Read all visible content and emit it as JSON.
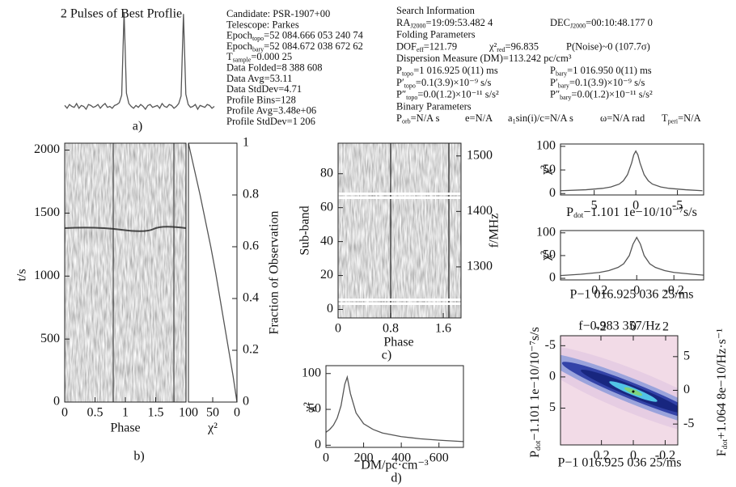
{
  "chart_data": [
    {
      "type": "line",
      "title": "2 Pulses of Best Proflie",
      "label": "a)",
      "color": "#555555",
      "values": [
        1,
        -2,
        2,
        0,
        -1,
        3,
        -2,
        1,
        0,
        -3,
        2,
        1,
        -1,
        0,
        2,
        -2,
        1,
        3,
        -1,
        0,
        -2,
        1,
        2,
        4,
        12,
        100,
        14,
        3,
        0,
        -2,
        1,
        -1,
        2,
        0,
        -3,
        1,
        2,
        -1,
        0,
        1,
        -2,
        3,
        0,
        -1,
        2,
        1,
        -2,
        0,
        3,
        11,
        98,
        13,
        2,
        -1,
        0,
        2,
        -3,
        1,
        0,
        -1,
        2,
        1,
        -2,
        0
      ]
    },
    {
      "type": "image",
      "label": "b)",
      "xlabel": "Phase",
      "ylabel": "t/s",
      "xlim": [
        0,
        2
      ],
      "xticks": [
        0,
        0.5,
        1,
        1.5
      ],
      "ylim": [
        0,
        2055
      ],
      "yticks": [
        0,
        500,
        1000,
        1500,
        2000
      ]
    },
    {
      "type": "line",
      "xlabel": "χ²",
      "y2label": "Fraction of Observation",
      "x": [
        0,
        8,
        17,
        26,
        35,
        44,
        54,
        65,
        76,
        88,
        100
      ],
      "series": [
        {
          "values": [
            0,
            0.1,
            0.2,
            0.3,
            0.4,
            0.5,
            0.6,
            0.7,
            0.8,
            0.9,
            1
          ],
          "axis": "y2",
          "color": "#555555"
        }
      ],
      "xlim": [
        100,
        0
      ],
      "xticks": [
        100,
        50,
        0
      ],
      "y2lim": [
        0,
        1
      ],
      "y2ticks": [
        0,
        0.2,
        0.4,
        0.6,
        0.8,
        1
      ]
    },
    {
      "type": "image",
      "label": "c)",
      "xlabel": "Phase",
      "ylabel": "Sub-band",
      "y2label": "f/MHz",
      "xlim": [
        0,
        1.87
      ],
      "xticks": [
        0,
        0.8,
        1.6
      ],
      "ylim": [
        -5,
        98
      ],
      "yticks": [
        0,
        20,
        40,
        60,
        80
      ],
      "y2lim": [
        1208,
        1523
      ],
      "y2ticks": [
        1300,
        1400,
        1500
      ]
    },
    {
      "type": "line",
      "label": "d)",
      "xlabel": "DM/pc·cm⁻³",
      "ylabel": "χ²",
      "color": "#555555",
      "x": [
        0,
        20,
        40,
        60,
        80,
        100,
        113,
        130,
        160,
        200,
        250,
        300,
        400,
        500,
        600,
        730
      ],
      "values": [
        18,
        22,
        28,
        38,
        55,
        85,
        95,
        72,
        45,
        30,
        22,
        17,
        12,
        9,
        7,
        5
      ],
      "xlim": [
        0,
        730
      ],
      "xticks": [
        0,
        200,
        400,
        600
      ],
      "ylim": [
        -3,
        111
      ],
      "yticks": [
        0,
        50,
        100
      ]
    },
    {
      "type": "line",
      "xlabel": [
        "P",
        "dot",
        "−1.101 1e−10/10⁻⁷s/s"
      ],
      "ylabel": "χ²",
      "color": "#555555",
      "x": [
        9,
        6,
        4,
        3,
        2,
        1.5,
        1,
        0.5,
        0.25,
        0,
        -0.25,
        -0.5,
        -1,
        -1.5,
        -2,
        -3,
        -4,
        -6,
        -8
      ],
      "values": [
        6,
        8,
        11,
        14,
        20,
        27,
        40,
        65,
        82,
        90,
        82,
        65,
        40,
        27,
        20,
        14,
        11,
        8,
        6
      ],
      "xlim": [
        9.05,
        -8.15
      ],
      "xticks": [
        5,
        0,
        -5
      ],
      "ylim": [
        -3,
        105
      ],
      "yticks": [
        0,
        50,
        100
      ]
    },
    {
      "type": "line",
      "xlabel": "P−1 016.925 036 25/ms",
      "ylabel": "χ²",
      "color": "#555555",
      "x": [
        0.41,
        0.3,
        0.2,
        0.15,
        0.1,
        0.07,
        0.04,
        0.02,
        0,
        -0.02,
        -0.04,
        -0.07,
        -0.1,
        -0.15,
        -0.2,
        -0.3,
        -0.36
      ],
      "values": [
        6,
        9,
        13,
        17,
        24,
        32,
        50,
        75,
        90,
        75,
        50,
        32,
        24,
        17,
        13,
        9,
        7
      ],
      "xlim": [
        0.41,
        -0.36
      ],
      "xticks": [
        0.2,
        0,
        -0.2
      ],
      "ylim": [
        -3.5,
        105
      ],
      "yticks": [
        0,
        50,
        100
      ]
    },
    {
      "type": "image",
      "xlabel": "P−1 016.925 036 25/ms",
      "x2label": "f−0.983 357/Hz",
      "ylabel": [
        "P",
        "dot",
        "−1.101 1e−10/10⁻⁷s/s"
      ],
      "y2label": [
        "F",
        "dot",
        "+1.064 8e−10/Hz·s⁻¹"
      ],
      "xlim": [
        0.457,
        -0.279
      ],
      "xticks": [
        0.2,
        0,
        -0.2
      ],
      "x2lim": [
        -4.5,
        2.75
      ],
      "x2ticks": [
        -2,
        0,
        2
      ],
      "ylim": [
        10.9,
        -6.6
      ],
      "yticks": [
        -5,
        0,
        5
      ],
      "y2lim": [
        -8.1,
        8.1
      ],
      "y2ticks": [
        -5,
        0,
        5
      ]
    }
  ],
  "info": {
    "left": [
      [
        [
          "Candidate: PSR-1907+00"
        ]
      ],
      [
        [
          "Telescope: Parkes"
        ]
      ],
      [
        [
          "Epoch",
          "topo",
          "=52 084.666 053 240 74"
        ]
      ],
      [
        [
          "Epoch",
          "bary",
          "=52 084.672 038 672 62"
        ]
      ],
      [
        [
          "T",
          "sample",
          "=0.000 25"
        ]
      ],
      [
        [
          "Data Folded=8 388 608"
        ]
      ],
      [
        [
          "Data Avg=53.11"
        ]
      ],
      [
        [
          "Data StdDev=4.71"
        ]
      ],
      [
        [
          "Profile Bins=128"
        ]
      ],
      [
        [
          "Profile Avg=3.48e+06"
        ]
      ],
      [
        [
          "Profile  StdDev=1 206"
        ]
      ]
    ],
    "right": [
      [
        [
          "Search Information"
        ]
      ],
      [
        [
          "RA",
          "J2000",
          "=19:09:53.482 4"
        ],
        [
          "DEC",
          "J2000",
          "=00:10:48.177 0"
        ]
      ],
      [
        [
          "Folding Parameters"
        ]
      ],
      [
        [
          "DOF",
          "eff",
          "=121.79"
        ],
        [
          "χ²",
          "red",
          "=96.835"
        ],
        [
          "P(Noise)~0 (107.7σ)"
        ]
      ],
      [
        [
          "Dispersion Measure (DM)=113.242 pc/cm³"
        ]
      ],
      [
        [
          "P",
          "topo",
          "=1 016.925 0(11) ms"
        ],
        [
          "P",
          "bary",
          "=1 016.950 0(11) ms"
        ]
      ],
      [
        [
          "P′",
          "topo",
          "=0.1(3.9)×10⁻⁹ s/s"
        ],
        [
          "P′",
          "bary",
          "=0.1(3.9)×10⁻⁹ s/s"
        ]
      ],
      [
        [
          "P″",
          "topo",
          "=0.0(1.2)×10⁻¹¹ s/s²"
        ],
        [
          "P″",
          "bary",
          "=0.0(1.2)×10⁻¹¹ s/s²"
        ]
      ],
      [
        [
          "Binary Parameters"
        ]
      ],
      [
        [
          "P",
          "orb",
          "=N/A s"
        ],
        [
          "e=N/A"
        ],
        [
          "a",
          "1",
          "sin(i)/c=N/A s"
        ],
        [
          "ω=N/A rad"
        ],
        [
          "T",
          "peri",
          "=N/A"
        ]
      ]
    ]
  }
}
